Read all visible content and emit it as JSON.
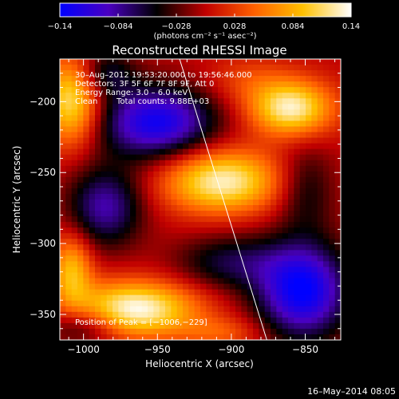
{
  "chart_data": {
    "type": "heatmap",
    "title": "Reconstructed RHESSI Image",
    "xlabel": "Heliocentric X (arcsec)",
    "ylabel": "Heliocentric Y (arcsec)",
    "xlim": [
      -1016,
      -826
    ],
    "ylim": [
      -368,
      -170
    ],
    "xticks": [
      -1000,
      -950,
      -900,
      -850
    ],
    "xtick_labels": [
      "−1000",
      "−950",
      "−900",
      "−850"
    ],
    "yticks": [
      -200,
      -250,
      -300,
      -350
    ],
    "ytick_labels": [
      "−200",
      "−250",
      "−300",
      "−350"
    ],
    "colorbar": {
      "range": [
        -0.14,
        0.14
      ],
      "ticks": [
        -0.14,
        -0.084,
        -0.028,
        0.028,
        0.084,
        0.14
      ],
      "tick_labels": [
        "−0.14",
        "−0.084",
        "−0.028",
        "0.028",
        "0.084",
        "0.14"
      ],
      "unit_label": "(photons cm⁻² s⁻¹ asec⁻²)",
      "colors": [
        "#0000ff",
        "#4a00c0",
        "#000000",
        "#c00000",
        "#ff6000",
        "#ffc000",
        "#ffffff"
      ]
    },
    "annotations": {
      "time": "30–Aug–2012 19:53:20.000 to 19:56:46.000",
      "detectors": "Detectors: 3F 5F 6F 7F 8F 9F, Att 0",
      "energy": "Energy Range: 3.0 – 6.0 keV",
      "clean": "Clean",
      "counts": "Total counts: 9.88E+03",
      "peak": "Position of Peak = [−1006,−229]"
    },
    "limb_line": {
      "x": [
        -935,
        -876
      ],
      "y": [
        -170,
        -368
      ]
    },
    "blobs": [
      {
        "x": -1008,
        "y": -200,
        "intensity": 0.12,
        "sx": 14,
        "sy": 22
      },
      {
        "x": -985,
        "y": -180,
        "intensity": -0.06,
        "sx": 14,
        "sy": 12
      },
      {
        "x": -950,
        "y": -215,
        "intensity": -0.13,
        "sx": 28,
        "sy": 18
      },
      {
        "x": -888,
        "y": -185,
        "intensity": 0.03,
        "sx": 20,
        "sy": 12
      },
      {
        "x": -858,
        "y": -205,
        "intensity": 0.13,
        "sx": 20,
        "sy": 14
      },
      {
        "x": -985,
        "y": -275,
        "intensity": -0.09,
        "sx": 18,
        "sy": 20
      },
      {
        "x": -905,
        "y": -257,
        "intensity": 0.13,
        "sx": 28,
        "sy": 16
      },
      {
        "x": -848,
        "y": -262,
        "intensity": -0.05,
        "sx": 14,
        "sy": 22
      },
      {
        "x": -1008,
        "y": -320,
        "intensity": 0.09,
        "sx": 10,
        "sy": 18
      },
      {
        "x": -965,
        "y": -348,
        "intensity": 0.14,
        "sx": 30,
        "sy": 14
      },
      {
        "x": -900,
        "y": -315,
        "intensity": -0.06,
        "sx": 26,
        "sy": 14
      },
      {
        "x": -850,
        "y": -335,
        "intensity": -0.14,
        "sx": 22,
        "sy": 24
      },
      {
        "x": -1000,
        "y": -360,
        "intensity": -0.06,
        "sx": 18,
        "sy": 10
      },
      {
        "x": -905,
        "y": -365,
        "intensity": 0.04,
        "sx": 20,
        "sy": 8
      }
    ]
  },
  "footer": {
    "timestamp": "16–May–2014 08:05"
  }
}
